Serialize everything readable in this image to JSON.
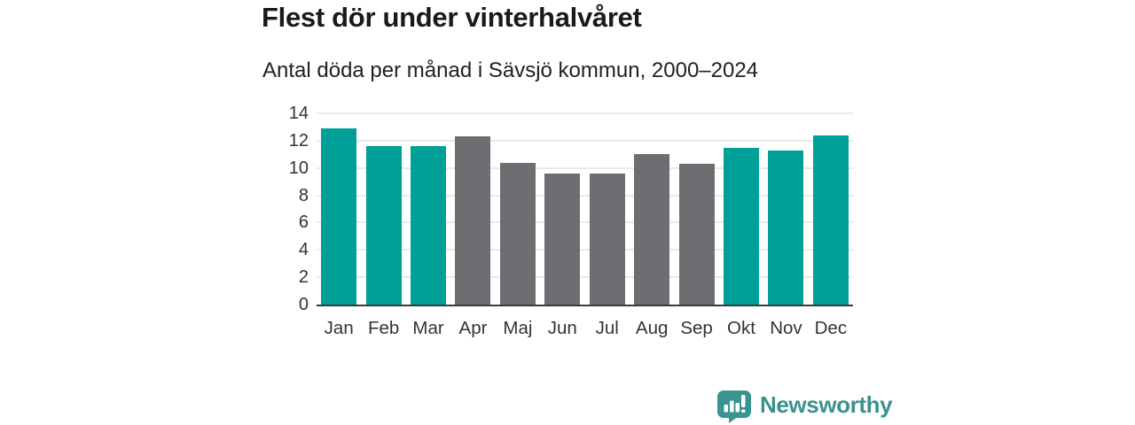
{
  "header": {
    "title": "Flest dör under vinterhalvåret",
    "subtitle": "Antal döda per månad i Sävsjö kommun, 2000–2024"
  },
  "chart_data": {
    "type": "bar",
    "title": "Flest dör under vinterhalvåret",
    "subtitle": "Antal döda per månad i Sävsjö kommun, 2000–2024",
    "categories": [
      "Jan",
      "Feb",
      "Mar",
      "Apr",
      "Maj",
      "Jun",
      "Jul",
      "Aug",
      "Sep",
      "Okt",
      "Nov",
      "Dec"
    ],
    "values": [
      12.9,
      11.6,
      11.6,
      12.3,
      10.4,
      9.6,
      9.6,
      11.0,
      10.3,
      11.5,
      11.3,
      12.4
    ],
    "groups": [
      "winter",
      "winter",
      "winter",
      "summer",
      "summer",
      "summer",
      "summer",
      "summer",
      "summer",
      "winter",
      "winter",
      "winter"
    ],
    "group_colors": {
      "winter": "#00a099",
      "summer": "#6e6e72"
    },
    "xlabel": "",
    "ylabel": "",
    "ylim": [
      0,
      14
    ],
    "yticks": [
      0,
      2,
      4,
      6,
      8,
      10,
      12,
      14
    ],
    "grid": "horizontal",
    "legend": "none"
  },
  "style_colors": {
    "grid": "#e9e9e9",
    "axis": "#3a3a3a",
    "tick_text": "#333333",
    "brand_teal": "#39928e",
    "icon_teal": "#399490"
  },
  "footer": {
    "brand": "Newsworthy"
  }
}
